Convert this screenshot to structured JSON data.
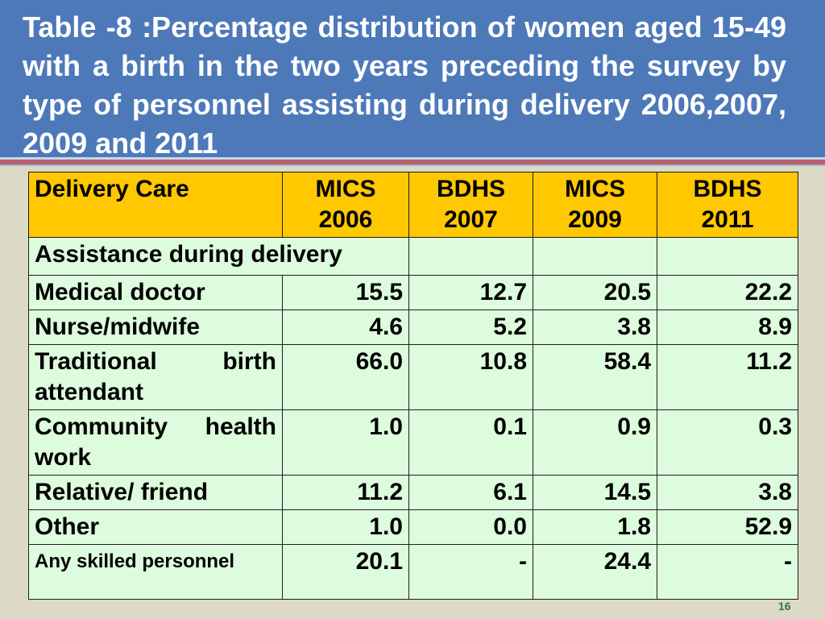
{
  "slide": {
    "title": "Table -8 :Percentage distribution of women aged 15-49 with a birth in the two years preceding the survey by type of personnel assisting during delivery 2006,2007, 2009 and 2011",
    "page_number": "16"
  },
  "table": {
    "headers": [
      [
        "Delivery Care"
      ],
      [
        "MICS",
        "2006"
      ],
      [
        "BDHS",
        "2007"
      ],
      [
        "MICS",
        "2009"
      ],
      [
        "BDHS",
        "2011"
      ]
    ],
    "section_label": "Assistance during delivery",
    "rows": [
      {
        "label": "Medical doctor",
        "values": [
          "15.5",
          "12.7",
          "20.5",
          "22.2"
        ]
      },
      {
        "label": "Nurse/midwife",
        "values": [
          "4.6",
          "5.2",
          "3.8",
          "8.9"
        ]
      },
      {
        "label": "Traditional birth attendant",
        "values": [
          "66.0",
          "10.8",
          "58.4",
          "11.2"
        ]
      },
      {
        "label": "Community health work",
        "values": [
          "1.0",
          "0.1",
          "0.9",
          "0.3"
        ]
      },
      {
        "label": "Relative/ friend",
        "values": [
          "11.2",
          "6.1",
          "14.5",
          "3.8"
        ]
      },
      {
        "label": "Other",
        "values": [
          "1.0",
          "0.0",
          "1.8",
          "52.9"
        ]
      },
      {
        "label": "Any skilled personnel",
        "values": [
          "20.1",
          "-",
          "24.4",
          "-"
        ]
      }
    ]
  },
  "colors": {
    "title_band": "#4d79b9",
    "header_fill": "#ffc800",
    "body_fill": "#ddfbdd",
    "slide_background": "#dcd9c6",
    "accent_stripe": "#b5606c"
  }
}
